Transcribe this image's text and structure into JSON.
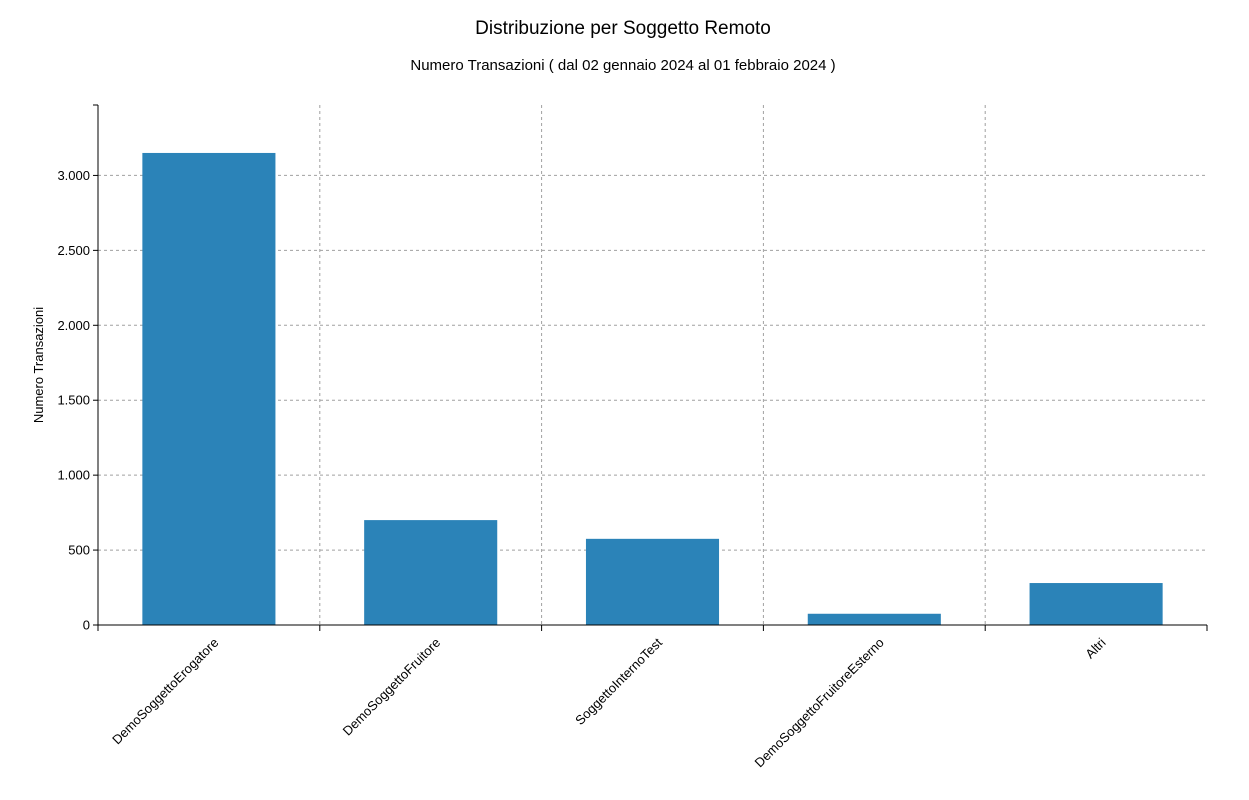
{
  "chart_data": {
    "type": "bar",
    "title": "Distribuzione per Soggetto Remoto",
    "subtitle": "Numero Transazioni ( dal 02 gennaio 2024 al 01 febbraio 2024 )",
    "xlabel": "",
    "ylabel": "Numero Transazioni",
    "categories": [
      "DemoSoggettoErogatore",
      "DemoSoggettoFruitore",
      "SoggettoInternoTest",
      "DemoSoggettoFruitoreEsterno",
      "Altri"
    ],
    "values": [
      3150,
      700,
      575,
      75,
      280
    ],
    "ylim": [
      0,
      3470
    ],
    "yticks": [
      0,
      500,
      1000,
      1500,
      2000,
      2500,
      3000
    ],
    "ytick_labels": [
      "0",
      "500",
      "1.000",
      "1.500",
      "2.000",
      "2.500",
      "3.000"
    ],
    "grid": true,
    "bar_color": "#2b83b8"
  }
}
